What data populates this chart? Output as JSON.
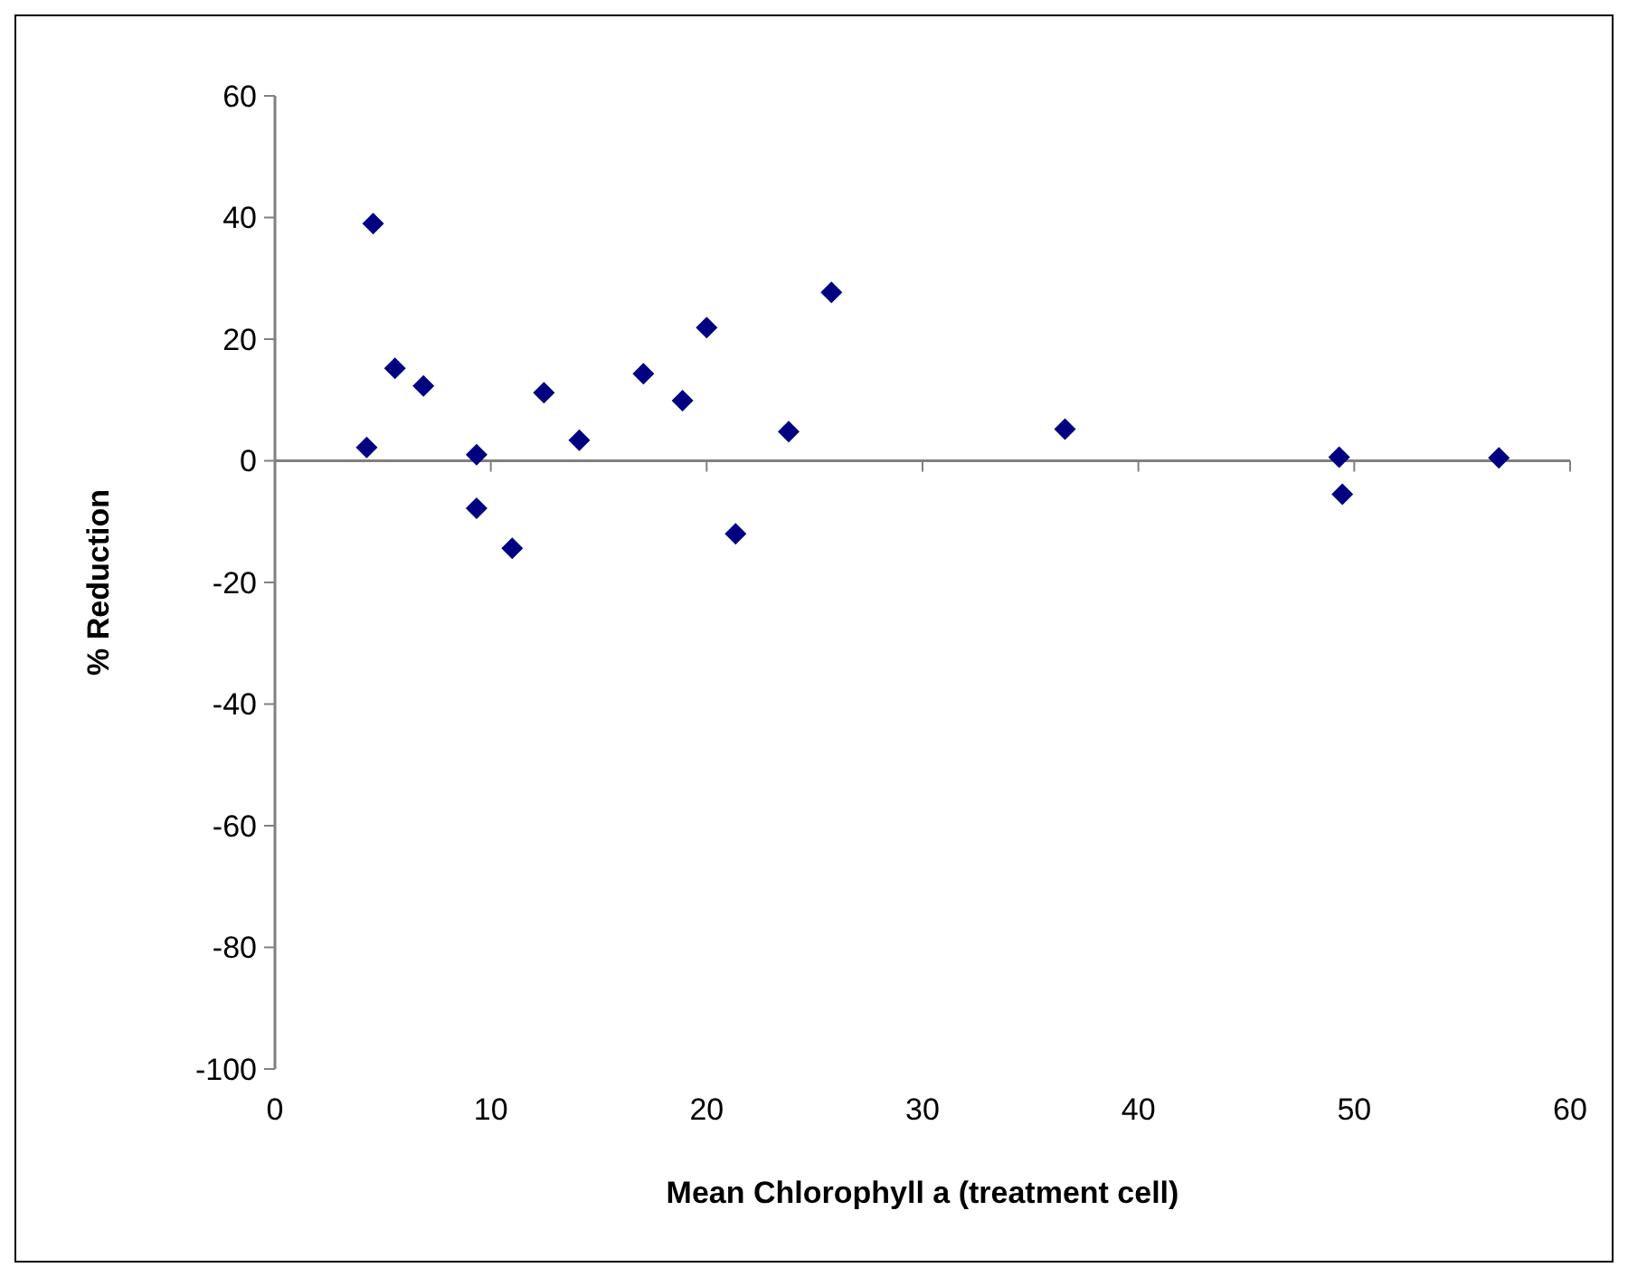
{
  "chart_data": {
    "type": "scatter",
    "xlabel": "Mean Chlorophyll a (treatment cell)",
    "ylabel": "% Reduction",
    "xlim": [
      0,
      60
    ],
    "ylim": [
      -100,
      60
    ],
    "xticks": [
      0,
      10,
      20,
      30,
      40,
      50,
      60
    ],
    "yticks": [
      -100,
      -80,
      -60,
      -40,
      -20,
      0,
      20,
      40,
      60
    ],
    "marker": "diamond",
    "series": [
      {
        "color": "#000080",
        "x": [
          4.25,
          4.55,
          5.56,
          6.88,
          9.34,
          9.34,
          10.99,
          12.46,
          14.1,
          17.07,
          18.88,
          20.0,
          21.34,
          23.8,
          25.78,
          36.6,
          49.3,
          49.45,
          56.7
        ],
        "values": [
          2.2,
          39.0,
          15.2,
          12.3,
          1.0,
          -7.8,
          -14.4,
          11.2,
          3.4,
          14.3,
          9.9,
          21.9,
          -12.0,
          4.8,
          27.7,
          5.2,
          0.6,
          -5.5,
          0.5
        ]
      }
    ]
  }
}
